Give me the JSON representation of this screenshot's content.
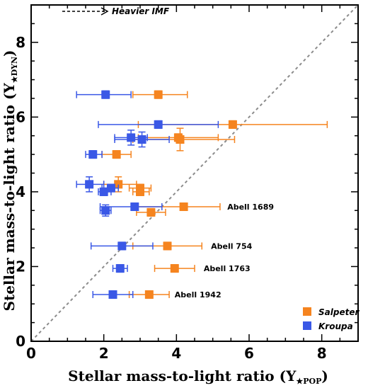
{
  "chart_data": {
    "type": "scatter",
    "xlabel": "Stellar mass-to-light ratio",
    "xlabel_symbol": "(Υ",
    "xlabel_sub": "★POP",
    "xlabel_close": ")",
    "ylabel": "Stellar mass-to-light ratio",
    "ylabel_symbol": "(Υ",
    "ylabel_sub": "★DYN",
    "ylabel_close": ")",
    "xlim": [
      0,
      9
    ],
    "ylim": [
      0,
      9
    ],
    "xticks": [
      "0",
      "2",
      "4",
      "6",
      "8"
    ],
    "yticks": [
      "0",
      "2",
      "4",
      "6",
      "8"
    ],
    "one_to_one_line": true,
    "arrow_label": "Heavier IMF",
    "legend_position": "bottom-right",
    "series": [
      {
        "name": "Salpeter",
        "color": "#f5841f",
        "points": [
          {
            "x": 3.5,
            "y": 6.6,
            "xerr": [
              0.7,
              0.8
            ],
            "yerr": 0.1
          },
          {
            "x": 5.55,
            "y": 5.8,
            "xerr": [
              2.6,
              2.6
            ],
            "yerr": 0.1
          },
          {
            "x": 4.05,
            "y": 5.45,
            "xerr": [
              1.1,
              1.1
            ],
            "yerr": 0.1
          },
          {
            "x": 4.1,
            "y": 5.4,
            "xerr": [
              1.3,
              1.5
            ],
            "yerr": 0.3
          },
          {
            "x": 2.35,
            "y": 5.0,
            "xerr": [
              0.4,
              0.4
            ],
            "yerr": 0.1
          },
          {
            "x": 2.4,
            "y": 4.2,
            "xerr": [
              0.4,
              0.5
            ],
            "yerr": 0.2
          },
          {
            "x": 3.0,
            "y": 4.1,
            "xerr": [
              0.3,
              0.3
            ],
            "yerr": 0.1
          },
          {
            "x": 3.0,
            "y": 4.0,
            "xerr": [
              0.2,
              0.25
            ],
            "yerr": 0.1
          },
          {
            "x": 4.2,
            "y": 3.6,
            "xerr": [
              1.4,
              1.0
            ],
            "yerr": 0.1
          },
          {
            "x": 3.3,
            "y": 3.45,
            "xerr": [
              0.4,
              0.4
            ],
            "yerr": 0.1
          },
          {
            "x": 3.75,
            "y": 2.55,
            "xerr": [
              0.95,
              0.95
            ],
            "yerr": 0.1
          },
          {
            "x": 3.95,
            "y": 1.95,
            "xerr": [
              0.55,
              0.55
            ],
            "yerr": 0.1
          },
          {
            "x": 3.25,
            "y": 1.25,
            "xerr": [
              0.55,
              0.55
            ],
            "yerr": 0.1
          }
        ]
      },
      {
        "name": "Kroupa",
        "color": "#3a58e6",
        "points": [
          {
            "x": 2.05,
            "y": 6.6,
            "xerr": [
              0.8,
              0.7
            ],
            "yerr": 0.1
          },
          {
            "x": 3.5,
            "y": 5.8,
            "xerr": [
              1.65,
              1.65
            ],
            "yerr": 0.1
          },
          {
            "x": 2.75,
            "y": 5.45,
            "xerr": [
              0.45,
              0.45
            ],
            "yerr": 0.2
          },
          {
            "x": 3.05,
            "y": 5.4,
            "xerr": [
              0.75,
              0.75
            ],
            "yerr": 0.2
          },
          {
            "x": 1.7,
            "y": 5.0,
            "xerr": [
              0.2,
              0.25
            ],
            "yerr": 0.1
          },
          {
            "x": 1.6,
            "y": 4.2,
            "xerr": [
              0.35,
              0.4
            ],
            "yerr": 0.2
          },
          {
            "x": 2.2,
            "y": 4.1,
            "xerr": [
              0.25,
              0.2
            ],
            "yerr": 0.1
          },
          {
            "x": 2.0,
            "y": 4.0,
            "xerr": [
              0.15,
              0.2
            ],
            "yerr": 0.1
          },
          {
            "x": 2.85,
            "y": 3.6,
            "xerr": [
              0.95,
              0.75
            ],
            "yerr": 0.1
          },
          {
            "x": 2.05,
            "y": 3.5,
            "xerr": [
              0.15,
              0.15
            ],
            "yerr": 0.15
          },
          {
            "x": 2.5,
            "y": 2.55,
            "xerr": [
              0.85,
              0.85
            ],
            "yerr": 0.1
          },
          {
            "x": 2.45,
            "y": 1.95,
            "xerr": [
              0.2,
              0.2
            ],
            "yerr": 0.1
          },
          {
            "x": 2.25,
            "y": 1.25,
            "xerr": [
              0.55,
              0.55
            ],
            "yerr": 0.1
          }
        ]
      }
    ],
    "annotations": [
      {
        "text": "Abell 1689",
        "x": 5.4,
        "y": 3.6
      },
      {
        "text": "Abell 754",
        "x": 4.95,
        "y": 2.55
      },
      {
        "text": "Abell 1763",
        "x": 4.75,
        "y": 1.95
      },
      {
        "text": "Abell 1942",
        "x": 3.95,
        "y": 1.25
      }
    ]
  }
}
